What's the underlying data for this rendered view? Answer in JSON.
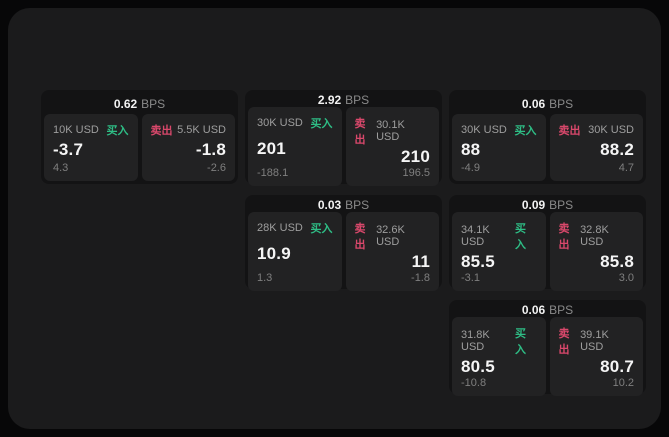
{
  "labels": {
    "bps": "BPS",
    "buy": "买入",
    "sell": "卖出"
  },
  "colors": {
    "buy": "#2ebd85",
    "sell": "#d9486b",
    "panel_bg": "#1b1b1c",
    "card_bg": "#131314",
    "tile_bg": "#222223"
  },
  "cards": [
    {
      "bps": "0.62",
      "buy": {
        "amount": "10K USD",
        "price": "-3.7",
        "delta": "4.3"
      },
      "sell": {
        "amount": "5.5K USD",
        "price": "-1.8",
        "delta": "-2.6"
      }
    },
    {
      "bps": "2.92",
      "buy": {
        "amount": "30K USD",
        "price": "201",
        "delta": "-188.1"
      },
      "sell": {
        "amount": "30.1K USD",
        "price": "210",
        "delta": "196.5"
      }
    },
    {
      "bps": "0.06",
      "buy": {
        "amount": "30K USD",
        "price": "88",
        "delta": "-4.9"
      },
      "sell": {
        "amount": "30K USD",
        "price": "88.2",
        "delta": "4.7"
      }
    },
    {
      "bps": "0.03",
      "buy": {
        "amount": "28K USD",
        "price": "10.9",
        "delta": "1.3"
      },
      "sell": {
        "amount": "32.6K USD",
        "price": "11",
        "delta": "-1.8"
      }
    },
    {
      "bps": "0.09",
      "buy": {
        "amount": "34.1K USD",
        "price": "85.5",
        "delta": "-3.1"
      },
      "sell": {
        "amount": "32.8K USD",
        "price": "85.8",
        "delta": "3.0"
      }
    },
    {
      "bps": "0.06",
      "buy": {
        "amount": "31.8K USD",
        "price": "80.5",
        "delta": "-10.8"
      },
      "sell": {
        "amount": "39.1K USD",
        "price": "80.7",
        "delta": "10.2"
      }
    }
  ]
}
